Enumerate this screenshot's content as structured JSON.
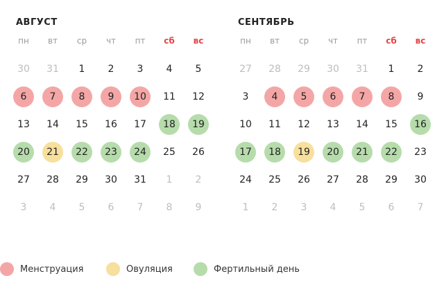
{
  "colors": {
    "menstruation": "#f4a6a6",
    "ovulation": "#f7df9d",
    "fertile": "#b6dcab",
    "weekend_label": "#e54545",
    "muted_text": "#bdbdbd"
  },
  "weekdays": [
    "пн",
    "вт",
    "ср",
    "чт",
    "пт",
    "сб",
    "вс"
  ],
  "months": [
    {
      "title": "АВГУСТ",
      "weeks": [
        [
          {
            "d": "30",
            "other": true
          },
          {
            "d": "31",
            "other": true
          },
          {
            "d": "1"
          },
          {
            "d": "2"
          },
          {
            "d": "3"
          },
          {
            "d": "4"
          },
          {
            "d": "5"
          }
        ],
        [
          {
            "d": "6",
            "type": "menstruation"
          },
          {
            "d": "7",
            "type": "menstruation"
          },
          {
            "d": "8",
            "type": "menstruation"
          },
          {
            "d": "9",
            "type": "menstruation"
          },
          {
            "d": "10",
            "type": "menstruation"
          },
          {
            "d": "11"
          },
          {
            "d": "12"
          }
        ],
        [
          {
            "d": "13"
          },
          {
            "d": "14"
          },
          {
            "d": "15"
          },
          {
            "d": "16"
          },
          {
            "d": "17"
          },
          {
            "d": "18",
            "type": "fertile"
          },
          {
            "d": "19",
            "type": "fertile"
          }
        ],
        [
          {
            "d": "20",
            "type": "fertile"
          },
          {
            "d": "21",
            "type": "ovulation"
          },
          {
            "d": "22",
            "type": "fertile"
          },
          {
            "d": "23",
            "type": "fertile"
          },
          {
            "d": "24",
            "type": "fertile"
          },
          {
            "d": "25"
          },
          {
            "d": "26"
          }
        ],
        [
          {
            "d": "27"
          },
          {
            "d": "28"
          },
          {
            "d": "29"
          },
          {
            "d": "30"
          },
          {
            "d": "31"
          },
          {
            "d": "1",
            "other": true
          },
          {
            "d": "2",
            "other": true
          }
        ],
        [
          {
            "d": "3",
            "other": true
          },
          {
            "d": "4",
            "other": true
          },
          {
            "d": "5",
            "other": true
          },
          {
            "d": "6",
            "other": true
          },
          {
            "d": "7",
            "other": true
          },
          {
            "d": "8",
            "other": true
          },
          {
            "d": "9",
            "other": true
          }
        ]
      ]
    },
    {
      "title": "СЕНТЯБРЬ",
      "weeks": [
        [
          {
            "d": "27",
            "other": true
          },
          {
            "d": "28",
            "other": true
          },
          {
            "d": "29",
            "other": true
          },
          {
            "d": "30",
            "other": true
          },
          {
            "d": "31",
            "other": true
          },
          {
            "d": "1"
          },
          {
            "d": "2"
          }
        ],
        [
          {
            "d": "3"
          },
          {
            "d": "4",
            "type": "menstruation"
          },
          {
            "d": "5",
            "type": "menstruation"
          },
          {
            "d": "6",
            "type": "menstruation"
          },
          {
            "d": "7",
            "type": "menstruation"
          },
          {
            "d": "8",
            "type": "menstruation"
          },
          {
            "d": "9"
          }
        ],
        [
          {
            "d": "10"
          },
          {
            "d": "11"
          },
          {
            "d": "12"
          },
          {
            "d": "13"
          },
          {
            "d": "14"
          },
          {
            "d": "15"
          },
          {
            "d": "16",
            "type": "fertile"
          }
        ],
        [
          {
            "d": "17",
            "type": "fertile"
          },
          {
            "d": "18",
            "type": "fertile"
          },
          {
            "d": "19",
            "type": "ovulation"
          },
          {
            "d": "20",
            "type": "fertile"
          },
          {
            "d": "21",
            "type": "fertile"
          },
          {
            "d": "22",
            "type": "fertile"
          },
          {
            "d": "23"
          }
        ],
        [
          {
            "d": "24"
          },
          {
            "d": "25"
          },
          {
            "d": "26"
          },
          {
            "d": "27"
          },
          {
            "d": "28"
          },
          {
            "d": "29"
          },
          {
            "d": "30"
          }
        ],
        [
          {
            "d": "1",
            "other": true
          },
          {
            "d": "2",
            "other": true
          },
          {
            "d": "3",
            "other": true
          },
          {
            "d": "4",
            "other": true
          },
          {
            "d": "5",
            "other": true
          },
          {
            "d": "6",
            "other": true
          },
          {
            "d": "7",
            "other": true
          }
        ]
      ]
    }
  ],
  "legend": [
    {
      "label": "Менструация",
      "type": "menstruation"
    },
    {
      "label": "Овуляция",
      "type": "ovulation"
    },
    {
      "label": "Фертильный день",
      "type": "fertile"
    }
  ]
}
